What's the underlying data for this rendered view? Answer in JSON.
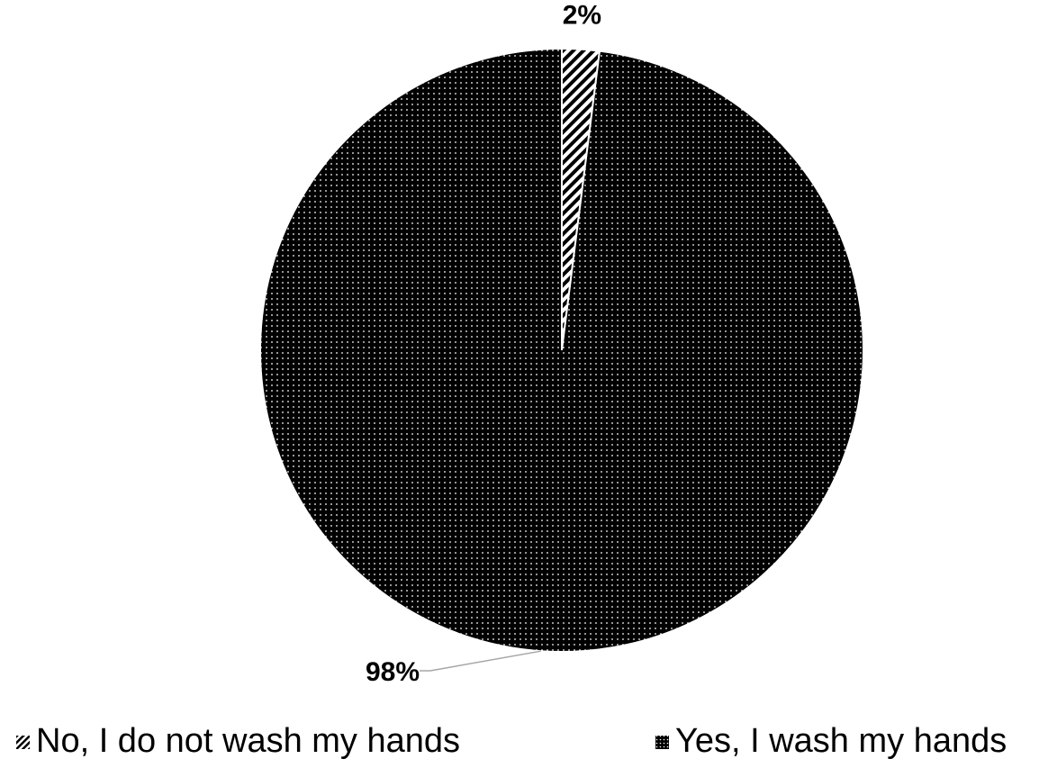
{
  "chart_data": {
    "type": "pie",
    "title": "",
    "start_angle_deg": 0,
    "direction": "clockwise",
    "legend_position": "bottom",
    "slices": [
      {
        "label": "No, I do not wash my hands",
        "value": 2,
        "data_label": "2%",
        "pattern": "diagonal-stripes"
      },
      {
        "label": "Yes, I wash my hands",
        "value": 98,
        "data_label": "98%",
        "pattern": "dotted"
      }
    ]
  },
  "colors": {
    "ink": "#000000",
    "paper": "#ffffff",
    "leader_line": "#a6a6a6"
  }
}
